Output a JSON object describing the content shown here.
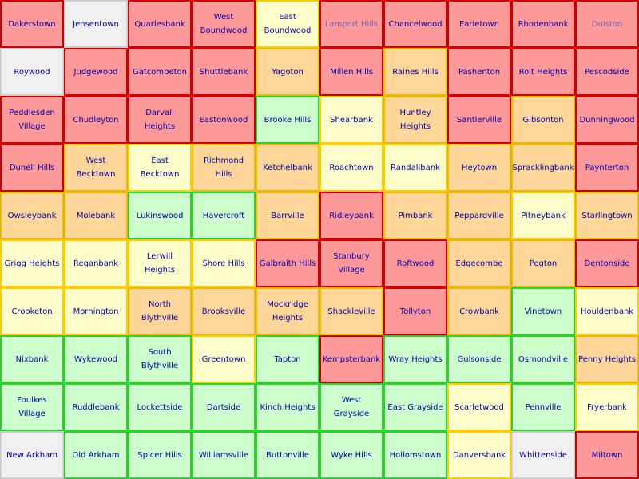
{
  "colors": {
    "red_fill": "#ff9999",
    "red_border": "#cc0000",
    "orange_fill": "#ffd699",
    "orange_border": "#e6b800",
    "yellow_fill": "#ffffcc",
    "yellow_border": "#ffcc00",
    "green_fill": "#ccffcc",
    "green_border": "#33cc33",
    "grey_fill": "#f0f0f0",
    "grey_border": "#cccccc",
    "text": "#0000aa"
  },
  "grid": {
    "rows": [
      [
        {
          "name": "Dakerstown",
          "status": "red"
        },
        {
          "name": "Jensentown",
          "status": "grey"
        },
        {
          "name": "Quarlesbank",
          "status": "red"
        },
        {
          "name": "West Boundwood",
          "status": "red"
        },
        {
          "name": "East Boundwood",
          "status": "yellow"
        },
        {
          "name": "Lamport Hills",
          "status": "red",
          "dim": true
        },
        {
          "name": "Chancelwood",
          "status": "red"
        },
        {
          "name": "Earletown",
          "status": "red"
        },
        {
          "name": "Rhodenbank",
          "status": "red"
        },
        {
          "name": "Dulston",
          "status": "red",
          "dim": true
        }
      ],
      [
        {
          "name": "Roywood",
          "status": "grey"
        },
        {
          "name": "Judgewood",
          "status": "red"
        },
        {
          "name": "Gatcombeton",
          "status": "red"
        },
        {
          "name": "Shuttlebank",
          "status": "red"
        },
        {
          "name": "Yagoton",
          "status": "orange"
        },
        {
          "name": "Millen Hills",
          "status": "red"
        },
        {
          "name": "Raines Hills",
          "status": "orange"
        },
        {
          "name": "Pashenton",
          "status": "red"
        },
        {
          "name": "Rolt Heights",
          "status": "red"
        },
        {
          "name": "Pescodside",
          "status": "red"
        }
      ],
      [
        {
          "name": "Peddlesden Village",
          "status": "red"
        },
        {
          "name": "Chudleyton",
          "status": "red"
        },
        {
          "name": "Darvall Heights",
          "status": "red"
        },
        {
          "name": "Eastonwood",
          "status": "red"
        },
        {
          "name": "Brooke Hills",
          "status": "green"
        },
        {
          "name": "Shearbank",
          "status": "yellow"
        },
        {
          "name": "Huntley Heights",
          "status": "orange"
        },
        {
          "name": "Santlerville",
          "status": "red"
        },
        {
          "name": "Gibsonton",
          "status": "orange"
        },
        {
          "name": "Dunningwood",
          "status": "red"
        }
      ],
      [
        {
          "name": "Dunell Hills",
          "status": "red"
        },
        {
          "name": "West Becktown",
          "status": "orange"
        },
        {
          "name": "East Becktown",
          "status": "yellow"
        },
        {
          "name": "Richmond Hills",
          "status": "orange"
        },
        {
          "name": "Ketchelbank",
          "status": "orange"
        },
        {
          "name": "Roachtown",
          "status": "yellow"
        },
        {
          "name": "Randallbank",
          "status": "yellow"
        },
        {
          "name": "Heytown",
          "status": "orange"
        },
        {
          "name": "Spracklingbank",
          "status": "orange"
        },
        {
          "name": "Paynterton",
          "status": "red"
        }
      ],
      [
        {
          "name": "Owsleybank",
          "status": "orange"
        },
        {
          "name": "Molebank",
          "status": "orange"
        },
        {
          "name": "Lukinswood",
          "status": "green"
        },
        {
          "name": "Havercroft",
          "status": "green"
        },
        {
          "name": "Barrville",
          "status": "orange"
        },
        {
          "name": "Ridleybank",
          "status": "red"
        },
        {
          "name": "Pimbank",
          "status": "orange"
        },
        {
          "name": "Peppardville",
          "status": "orange"
        },
        {
          "name": "Pitneybank",
          "status": "yellow"
        },
        {
          "name": "Starlingtown",
          "status": "orange"
        }
      ],
      [
        {
          "name": "Grigg Heights",
          "status": "yellow"
        },
        {
          "name": "Reganbank",
          "status": "yellow"
        },
        {
          "name": "Lerwill Heights",
          "status": "yellow"
        },
        {
          "name": "Shore Hills",
          "status": "yellow"
        },
        {
          "name": "Galbraith Hills",
          "status": "red"
        },
        {
          "name": "Stanbury Village",
          "status": "red"
        },
        {
          "name": "Roftwood",
          "status": "red"
        },
        {
          "name": "Edgecombe",
          "status": "orange"
        },
        {
          "name": "Pegton",
          "status": "orange"
        },
        {
          "name": "Dentonside",
          "status": "red"
        }
      ],
      [
        {
          "name": "Crooketon",
          "status": "yellow"
        },
        {
          "name": "Mornington",
          "status": "yellow"
        },
        {
          "name": "North Blythville",
          "status": "orange"
        },
        {
          "name": "Brooksville",
          "status": "orange"
        },
        {
          "name": "Mockridge Heights",
          "status": "orange"
        },
        {
          "name": "Shackleville",
          "status": "orange"
        },
        {
          "name": "Tollyton",
          "status": "red"
        },
        {
          "name": "Crowbank",
          "status": "orange"
        },
        {
          "name": "Vinetown",
          "status": "green"
        },
        {
          "name": "Houldenbank",
          "status": "yellow"
        }
      ],
      [
        {
          "name": "Nixbank",
          "status": "green"
        },
        {
          "name": "Wykewood",
          "status": "green"
        },
        {
          "name": "South Blythville",
          "status": "green"
        },
        {
          "name": "Greentown",
          "status": "yellow"
        },
        {
          "name": "Tapton",
          "status": "green"
        },
        {
          "name": "Kempsterbank",
          "status": "red"
        },
        {
          "name": "Wray Heights",
          "status": "green"
        },
        {
          "name": "Gulsonside",
          "status": "green"
        },
        {
          "name": "Osmondville",
          "status": "green"
        },
        {
          "name": "Penny Heights",
          "status": "orange"
        }
      ],
      [
        {
          "name": "Foulkes Village",
          "status": "green"
        },
        {
          "name": "Ruddlebank",
          "status": "green"
        },
        {
          "name": "Lockettside",
          "status": "green"
        },
        {
          "name": "Dartside",
          "status": "green"
        },
        {
          "name": "Kinch Heights",
          "status": "green"
        },
        {
          "name": "West Grayside",
          "status": "green"
        },
        {
          "name": "East Grayside",
          "status": "green"
        },
        {
          "name": "Scarletwood",
          "status": "yellow"
        },
        {
          "name": "Pennville",
          "status": "green"
        },
        {
          "name": "Fryerbank",
          "status": "yellow"
        }
      ],
      [
        {
          "name": "New Arkham",
          "status": "grey"
        },
        {
          "name": "Old Arkham",
          "status": "green"
        },
        {
          "name": "Spicer Hills",
          "status": "green"
        },
        {
          "name": "Williamsville",
          "status": "green"
        },
        {
          "name": "Buttonville",
          "status": "green"
        },
        {
          "name": "Wyke Hills",
          "status": "green"
        },
        {
          "name": "Hollomstown",
          "status": "green"
        },
        {
          "name": "Danversbank",
          "status": "yellow"
        },
        {
          "name": "Whittenside",
          "status": "grey"
        },
        {
          "name": "Miltown",
          "status": "red"
        }
      ]
    ]
  }
}
